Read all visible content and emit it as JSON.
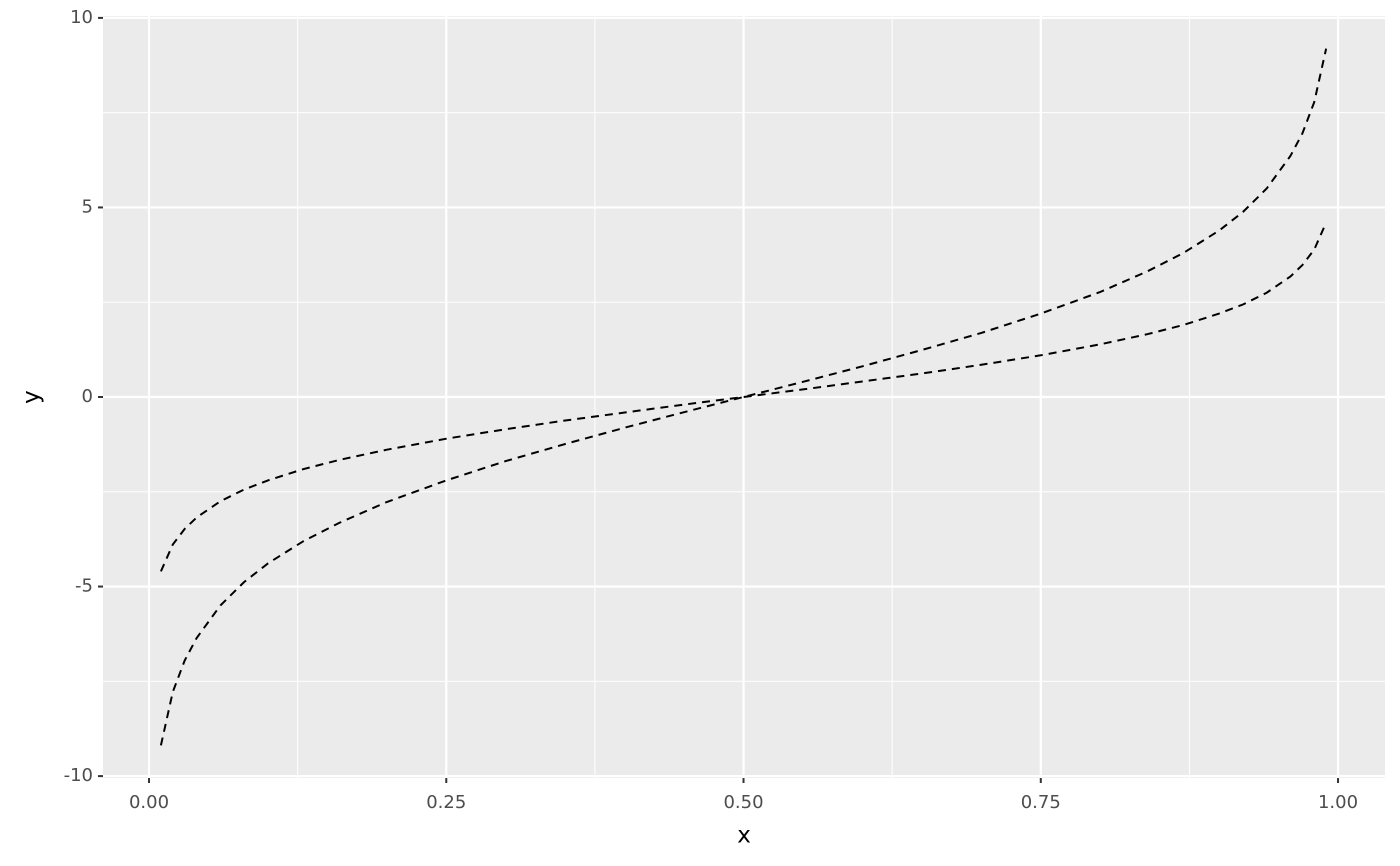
{
  "chart_data": {
    "type": "line",
    "x_label": "x",
    "y_label": "y",
    "x": [
      0.01,
      0.02,
      0.03,
      0.04,
      0.06,
      0.08,
      0.1,
      0.13,
      0.16,
      0.2,
      0.25,
      0.3,
      0.35,
      0.4,
      0.45,
      0.5,
      0.55,
      0.6,
      0.65,
      0.7,
      0.75,
      0.8,
      0.84,
      0.87,
      0.9,
      0.92,
      0.94,
      0.96,
      0.97,
      0.98,
      0.99
    ],
    "series": [
      {
        "color": "#000000",
        "values": [
          -4.6,
          -3.89,
          -3.48,
          -3.18,
          -2.75,
          -2.44,
          -2.2,
          -1.9,
          -1.66,
          -1.39,
          -1.1,
          -0.85,
          -0.62,
          -0.41,
          -0.2,
          0,
          0.2,
          0.41,
          0.62,
          0.85,
          1.1,
          1.39,
          1.66,
          1.9,
          2.2,
          2.44,
          2.75,
          3.18,
          3.48,
          3.89,
          4.6
        ]
      },
      {
        "color": "#000000",
        "values": [
          -9.19,
          -7.78,
          -6.95,
          -6.36,
          -5.5,
          -4.88,
          -4.39,
          -3.8,
          -3.32,
          -2.77,
          -2.2,
          -1.69,
          -1.24,
          -0.81,
          -0.4,
          0,
          0.4,
          0.81,
          1.24,
          1.69,
          2.2,
          2.77,
          3.32,
          3.8,
          4.39,
          4.88,
          5.5,
          6.36,
          6.95,
          7.78,
          9.19
        ]
      }
    ],
    "line_style": "dashed",
    "xlim": [
      -0.0387,
      1.0395
    ],
    "ylim": [
      -10.05,
      10.05
    ],
    "xticks": [
      {
        "value": 0,
        "label": "0.00"
      },
      0.25,
      {
        "value": 0.5,
        "label": "0.50"
      },
      0.75,
      {
        "value": 1,
        "label": "1.00"
      }
    ],
    "yticks": [
      -10,
      -5,
      0,
      5,
      10
    ],
    "grid": true
  }
}
